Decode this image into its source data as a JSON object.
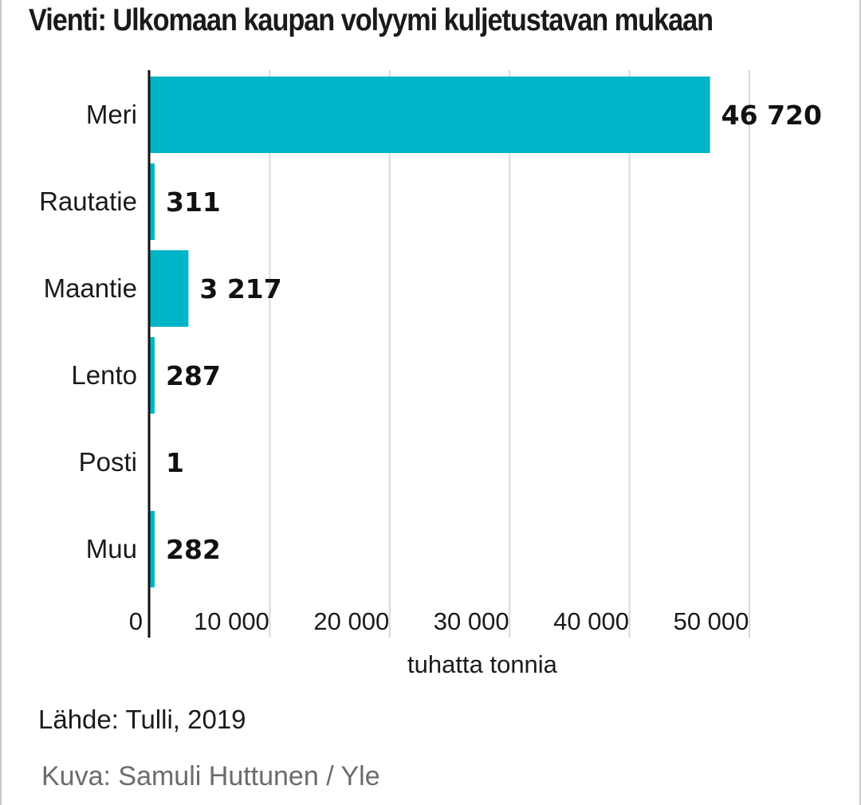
{
  "chart_data": {
    "type": "bar",
    "orientation": "horizontal",
    "title": "Vienti: Ulkomaan kaupan volyymi kuljetustavan mukaan",
    "categories": [
      "Meri",
      "Rautatie",
      "Maantie",
      "Lento",
      "Posti",
      "Muu"
    ],
    "values": [
      46720,
      311,
      3217,
      287,
      1,
      282
    ],
    "value_labels": [
      "46 720",
      "311",
      "3 217",
      "287",
      "1",
      "282"
    ],
    "xlabel": "tuhatta tonnia",
    "ylabel": "",
    "xlim": [
      0,
      50000
    ],
    "ticks": [
      0,
      10000,
      20000,
      30000,
      40000,
      50000
    ],
    "tick_labels": [
      "0",
      "10 000",
      "20 000",
      "30 000",
      "40 000",
      "50 000"
    ],
    "grid": "vertical",
    "legend": "none",
    "bar_color": "#00b5c8"
  },
  "source": "Lähde: Tulli, 2019",
  "credit": "Kuva: Samuli Huttunen / Yle"
}
